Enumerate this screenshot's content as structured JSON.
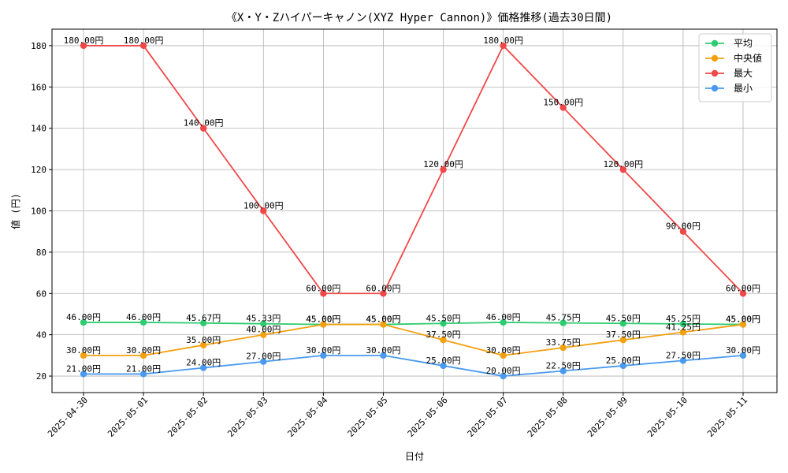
{
  "chart_data": {
    "type": "line",
    "title": "《X・Y・Zハイパーキャノン(XYZ Hyper Cannon)》価格推移(過去30日間)",
    "xlabel": "日付",
    "ylabel": "値 (円)",
    "ylim": [
      12,
      188
    ],
    "yticks": [
      20,
      40,
      60,
      80,
      100,
      120,
      140,
      160,
      180
    ],
    "grid": true,
    "legend_position": "top-right",
    "value_suffix": "円",
    "categories": [
      "2025-04-30",
      "2025-05-01",
      "2025-05-02",
      "2025-05-03",
      "2025-05-04",
      "2025-05-05",
      "2025-05-06",
      "2025-05-07",
      "2025-05-08",
      "2025-05-09",
      "2025-05-10",
      "2025-05-11"
    ],
    "series": [
      {
        "name": "平均",
        "color": "#2ecc71",
        "values": [
          46.0,
          46.0,
          45.67,
          45.33,
          45.0,
          45.0,
          45.5,
          46.0,
          45.75,
          45.5,
          45.25,
          45.0
        ]
      },
      {
        "name": "中央値",
        "color": "#f5a00f",
        "values": [
          30.0,
          30.0,
          35.0,
          40.0,
          45.0,
          45.0,
          37.5,
          30.0,
          33.75,
          37.5,
          41.25,
          45.0
        ]
      },
      {
        "name": "最大",
        "color": "#f04848",
        "values": [
          180.0,
          180.0,
          140.0,
          100.0,
          60.0,
          60.0,
          120.0,
          180.0,
          150.0,
          120.0,
          90.0,
          60.0
        ]
      },
      {
        "name": "最小",
        "color": "#4a9af0",
        "values": [
          21.0,
          21.0,
          24.0,
          27.0,
          30.0,
          30.0,
          25.0,
          20.0,
          22.5,
          25.0,
          27.5,
          30.0
        ]
      }
    ]
  }
}
